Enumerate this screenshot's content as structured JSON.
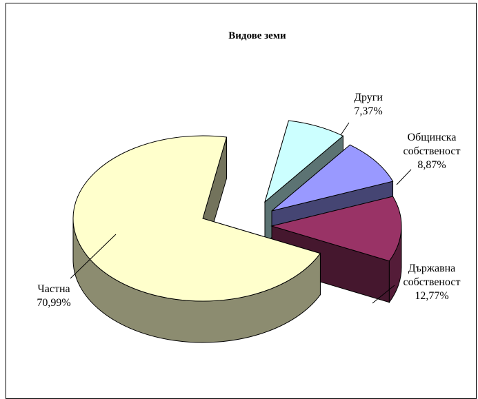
{
  "chart_data": {
    "type": "pie",
    "title": "Видове земи",
    "three_d": true,
    "exploded": true,
    "slices": [
      {
        "label": "Частна",
        "value": 70.99,
        "value_text": "70,99%",
        "color": "#FFFFCC"
      },
      {
        "label": "Държавна собственост",
        "value": 12.77,
        "value_text": "12,77%",
        "color": "#993366"
      },
      {
        "label": "Общинска собственост",
        "value": 8.87,
        "value_text": "8,87%",
        "color": "#9999FF"
      },
      {
        "label": "Други",
        "value": 7.37,
        "value_text": "7,37%",
        "color": "#CCFFFF"
      }
    ]
  }
}
